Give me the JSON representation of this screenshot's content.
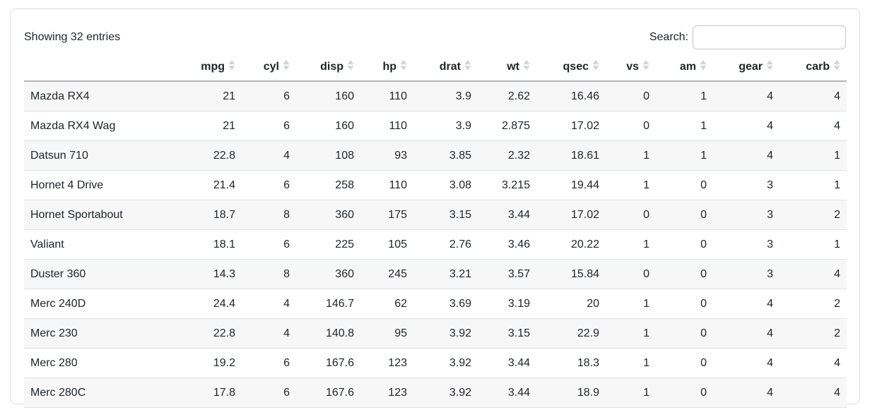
{
  "colors": {
    "text": "#212529",
    "card_border": "#dddddd",
    "input_border": "#c6c6c6",
    "header_border": "#b3b3b3",
    "row_border": "#dee2e6",
    "stripe": "#f7f7f7",
    "sort_icon": "#d4d4d4"
  },
  "card": {
    "info_text": "Showing 32 entries",
    "search": {
      "label": "Search:",
      "value": ""
    }
  },
  "icons": {
    "sort": "sort-both-icon"
  },
  "table": {
    "columns": [
      {
        "key": "name",
        "label": "",
        "sortable": false,
        "align": "left"
      },
      {
        "key": "mpg",
        "label": "mpg",
        "sortable": true
      },
      {
        "key": "cyl",
        "label": "cyl",
        "sortable": true
      },
      {
        "key": "disp",
        "label": "disp",
        "sortable": true
      },
      {
        "key": "hp",
        "label": "hp",
        "sortable": true
      },
      {
        "key": "drat",
        "label": "drat",
        "sortable": true
      },
      {
        "key": "wt",
        "label": "wt",
        "sortable": true
      },
      {
        "key": "qsec",
        "label": "qsec",
        "sortable": true
      },
      {
        "key": "vs",
        "label": "vs",
        "sortable": true
      },
      {
        "key": "am",
        "label": "am",
        "sortable": true
      },
      {
        "key": "gear",
        "label": "gear",
        "sortable": true
      },
      {
        "key": "carb",
        "label": "carb",
        "sortable": true
      }
    ],
    "rows": [
      {
        "name": "Mazda RX4",
        "values": [
          "21",
          "6",
          "160",
          "110",
          "3.9",
          "2.62",
          "16.46",
          "0",
          "1",
          "4",
          "4"
        ]
      },
      {
        "name": "Mazda RX4 Wag",
        "values": [
          "21",
          "6",
          "160",
          "110",
          "3.9",
          "2.875",
          "17.02",
          "0",
          "1",
          "4",
          "4"
        ]
      },
      {
        "name": "Datsun 710",
        "values": [
          "22.8",
          "4",
          "108",
          "93",
          "3.85",
          "2.32",
          "18.61",
          "1",
          "1",
          "4",
          "1"
        ]
      },
      {
        "name": "Hornet 4 Drive",
        "values": [
          "21.4",
          "6",
          "258",
          "110",
          "3.08",
          "3.215",
          "19.44",
          "1",
          "0",
          "3",
          "1"
        ]
      },
      {
        "name": "Hornet Sportabout",
        "values": [
          "18.7",
          "8",
          "360",
          "175",
          "3.15",
          "3.44",
          "17.02",
          "0",
          "0",
          "3",
          "2"
        ]
      },
      {
        "name": "Valiant",
        "values": [
          "18.1",
          "6",
          "225",
          "105",
          "2.76",
          "3.46",
          "20.22",
          "1",
          "0",
          "3",
          "1"
        ]
      },
      {
        "name": "Duster 360",
        "values": [
          "14.3",
          "8",
          "360",
          "245",
          "3.21",
          "3.57",
          "15.84",
          "0",
          "0",
          "3",
          "4"
        ]
      },
      {
        "name": "Merc 240D",
        "values": [
          "24.4",
          "4",
          "146.7",
          "62",
          "3.69",
          "3.19",
          "20",
          "1",
          "0",
          "4",
          "2"
        ]
      },
      {
        "name": "Merc 230",
        "values": [
          "22.8",
          "4",
          "140.8",
          "95",
          "3.92",
          "3.15",
          "22.9",
          "1",
          "0",
          "4",
          "2"
        ]
      },
      {
        "name": "Merc 280",
        "values": [
          "19.2",
          "6",
          "167.6",
          "123",
          "3.92",
          "3.44",
          "18.3",
          "1",
          "0",
          "4",
          "4"
        ]
      },
      {
        "name": "Merc 280C",
        "values": [
          "17.8",
          "6",
          "167.6",
          "123",
          "3.92",
          "3.44",
          "18.9",
          "1",
          "0",
          "4",
          "4"
        ]
      }
    ]
  }
}
